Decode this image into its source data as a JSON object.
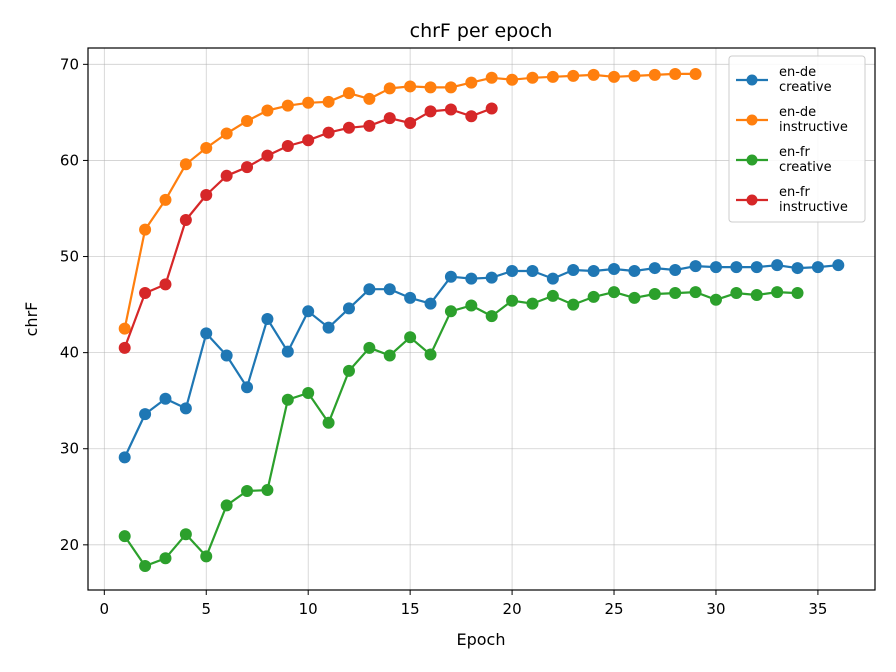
{
  "chart_data": {
    "type": "line",
    "title": "chrF per epoch",
    "xlabel": "Epoch",
    "ylabel": "chrF",
    "xlim": [
      -0.8,
      37.8
    ],
    "ylim": [
      15.3,
      71.7
    ],
    "xticks": [
      0,
      5,
      10,
      15,
      20,
      25,
      30,
      35
    ],
    "yticks": [
      20,
      30,
      40,
      50,
      60,
      70
    ],
    "grid": true,
    "legend_position": "top-right",
    "series": [
      {
        "name_lines": [
          "en-de",
          "creative"
        ],
        "color": "#1f77b4",
        "x": [
          1,
          2,
          3,
          4,
          5,
          6,
          7,
          8,
          9,
          10,
          11,
          12,
          13,
          14,
          15,
          16,
          17,
          18,
          19,
          20,
          21,
          22,
          23,
          24,
          25,
          26,
          27,
          28,
          29,
          30,
          31,
          32,
          33,
          34,
          35,
          36
        ],
        "y": [
          29.1,
          33.6,
          35.2,
          34.2,
          42.0,
          39.7,
          36.4,
          43.5,
          40.1,
          44.3,
          42.6,
          44.6,
          46.6,
          46.6,
          45.7,
          45.1,
          47.9,
          47.7,
          47.8,
          48.5,
          48.5,
          47.7,
          48.6,
          48.5,
          48.7,
          48.5,
          48.8,
          48.6,
          49.0,
          48.9,
          48.9,
          48.9,
          49.1,
          48.8,
          48.9,
          49.1
        ]
      },
      {
        "name_lines": [
          "en-de",
          "instructive"
        ],
        "color": "#ff7f0e",
        "x": [
          1,
          2,
          3,
          4,
          5,
          6,
          7,
          8,
          9,
          10,
          11,
          12,
          13,
          14,
          15,
          16,
          17,
          18,
          19,
          20,
          21,
          22,
          23,
          24,
          25,
          26,
          27,
          28,
          29
        ],
        "y": [
          42.5,
          52.8,
          55.9,
          59.6,
          61.3,
          62.8,
          64.1,
          65.2,
          65.7,
          66.0,
          66.1,
          67.0,
          66.4,
          67.5,
          67.7,
          67.6,
          67.6,
          68.1,
          68.6,
          68.4,
          68.6,
          68.7,
          68.8,
          68.9,
          68.7,
          68.8,
          68.9,
          69.0,
          69.0
        ]
      },
      {
        "name_lines": [
          "en-fr",
          "creative"
        ],
        "color": "#2ca02c",
        "x": [
          1,
          2,
          3,
          4,
          5,
          6,
          7,
          8,
          9,
          10,
          11,
          12,
          13,
          14,
          15,
          16,
          17,
          18,
          19,
          20,
          21,
          22,
          23,
          24,
          25,
          26,
          27,
          28,
          29,
          30,
          31,
          32,
          33,
          34
        ],
        "y": [
          20.9,
          17.8,
          18.6,
          21.1,
          18.8,
          24.1,
          25.6,
          25.7,
          35.1,
          35.8,
          32.7,
          38.1,
          40.5,
          39.7,
          41.6,
          39.8,
          44.3,
          44.9,
          43.8,
          45.4,
          45.1,
          45.9,
          45.0,
          45.8,
          46.3,
          45.7,
          46.1,
          46.2,
          46.3,
          45.5,
          46.2,
          46.0,
          46.3,
          46.2
        ]
      },
      {
        "name_lines": [
          "en-fr",
          "instructive"
        ],
        "color": "#d62728",
        "x": [
          1,
          2,
          3,
          4,
          5,
          6,
          7,
          8,
          9,
          10,
          11,
          12,
          13,
          14,
          15,
          16,
          17,
          18,
          19
        ],
        "y": [
          40.5,
          46.2,
          47.1,
          53.8,
          56.4,
          58.4,
          59.3,
          60.5,
          61.5,
          62.1,
          62.9,
          63.4,
          63.6,
          64.4,
          63.9,
          65.1,
          65.3,
          64.6,
          65.4
        ]
      }
    ]
  }
}
